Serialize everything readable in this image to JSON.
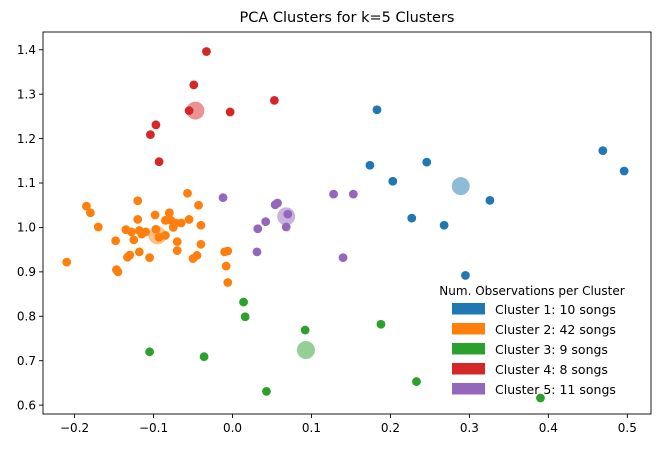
{
  "chart_data": {
    "type": "scatter",
    "title": "PCA Clusters for k=5 Clusters",
    "xlabel": "",
    "ylabel": "",
    "xlim": [
      -0.24,
      0.53
    ],
    "ylim": [
      0.58,
      1.44
    ],
    "xticks": [
      -0.2,
      -0.1,
      0.0,
      0.1,
      0.2,
      0.3,
      0.4,
      0.5
    ],
    "xtick_labels": [
      "−0.2",
      "−0.1",
      "0.0",
      "0.1",
      "0.2",
      "0.3",
      "0.4",
      "0.5"
    ],
    "yticks": [
      0.6,
      0.7,
      0.8,
      0.9,
      1.0,
      1.1,
      1.2,
      1.3,
      1.4
    ],
    "ytick_labels": [
      "0.6",
      "0.7",
      "0.8",
      "0.9",
      "1.0",
      "1.1",
      "1.2",
      "1.3",
      "1.4"
    ],
    "grid": false,
    "legend": {
      "title": "Num. Observations per Cluster",
      "placement": "lower-right"
    },
    "series": [
      {
        "name": "Cluster 1: 10 songs",
        "color": "#1f77b4",
        "centroid": [
          0.289,
          1.093
        ],
        "points": [
          [
            0.183,
            1.265
          ],
          [
            0.174,
            1.14
          ],
          [
            0.203,
            1.104
          ],
          [
            0.246,
            1.147
          ],
          [
            0.227,
            1.021
          ],
          [
            0.268,
            1.005
          ],
          [
            0.295,
            0.892
          ],
          [
            0.326,
            1.061
          ],
          [
            0.469,
            1.173
          ],
          [
            0.496,
            1.127
          ]
        ]
      },
      {
        "name": "Cluster 2: 42 songs",
        "color": "#ff7f0e",
        "centroid": [
          -0.095,
          0.982
        ],
        "points": [
          [
            -0.21,
            0.922
          ],
          [
            -0.185,
            1.048
          ],
          [
            -0.18,
            1.033
          ],
          [
            -0.17,
            1.001
          ],
          [
            -0.148,
            0.97
          ],
          [
            -0.147,
            0.905
          ],
          [
            -0.145,
            0.9
          ],
          [
            -0.135,
            0.995
          ],
          [
            -0.133,
            0.933
          ],
          [
            -0.13,
            0.938
          ],
          [
            -0.128,
            0.99
          ],
          [
            -0.125,
            0.972
          ],
          [
            -0.12,
            1.06
          ],
          [
            -0.12,
            1.018
          ],
          [
            -0.118,
            0.993
          ],
          [
            -0.115,
            0.985
          ],
          [
            -0.118,
            0.945
          ],
          [
            -0.11,
            0.99
          ],
          [
            -0.105,
            0.932
          ],
          [
            -0.098,
            1.028
          ],
          [
            -0.097,
            0.996
          ],
          [
            -0.093,
            0.978
          ],
          [
            -0.085,
            1.016
          ],
          [
            -0.085,
            0.982
          ],
          [
            -0.078,
            1.016
          ],
          [
            -0.08,
            1.033
          ],
          [
            -0.075,
            1.0
          ],
          [
            -0.072,
            1.01
          ],
          [
            -0.07,
            0.968
          ],
          [
            -0.07,
            0.948
          ],
          [
            -0.065,
            1.01
          ],
          [
            -0.057,
            1.077
          ],
          [
            -0.055,
            1.018
          ],
          [
            -0.05,
            0.93
          ],
          [
            -0.045,
            0.937
          ],
          [
            -0.043,
            1.05
          ],
          [
            -0.04,
            1.005
          ],
          [
            -0.04,
            0.962
          ],
          [
            -0.01,
            0.945
          ],
          [
            -0.006,
            0.947
          ],
          [
            -0.008,
            0.913
          ],
          [
            -0.006,
            0.876
          ]
        ]
      },
      {
        "name": "Cluster 3: 9 songs",
        "color": "#2ca02c",
        "centroid": [
          0.093,
          0.724
        ],
        "points": [
          [
            -0.105,
            0.72
          ],
          [
            -0.036,
            0.709
          ],
          [
            0.014,
            0.832
          ],
          [
            0.016,
            0.799
          ],
          [
            0.043,
            0.631
          ],
          [
            0.092,
            0.769
          ],
          [
            0.188,
            0.782
          ],
          [
            0.233,
            0.653
          ],
          [
            0.39,
            0.616
          ]
        ]
      },
      {
        "name": "Cluster 4: 8 songs",
        "color": "#d62728",
        "centroid": [
          -0.047,
          1.263
        ],
        "points": [
          [
            -0.104,
            1.209
          ],
          [
            -0.097,
            1.231
          ],
          [
            -0.093,
            1.148
          ],
          [
            -0.055,
            1.263
          ],
          [
            -0.049,
            1.321
          ],
          [
            -0.033,
            1.396
          ],
          [
            -0.003,
            1.26
          ],
          [
            0.053,
            1.286
          ]
        ]
      },
      {
        "name": "Cluster 5: 11 songs",
        "color": "#9467bd",
        "centroid": [
          0.068,
          1.025
        ],
        "points": [
          [
            -0.012,
            1.067
          ],
          [
            0.032,
            0.997
          ],
          [
            0.031,
            0.945
          ],
          [
            0.042,
            1.013
          ],
          [
            0.054,
            1.051
          ],
          [
            0.057,
            1.055
          ],
          [
            0.068,
            1.001
          ],
          [
            0.128,
            1.075
          ],
          [
            0.153,
            1.075
          ],
          [
            0.14,
            0.932
          ],
          [
            0.07,
            1.03
          ]
        ]
      }
    ]
  }
}
